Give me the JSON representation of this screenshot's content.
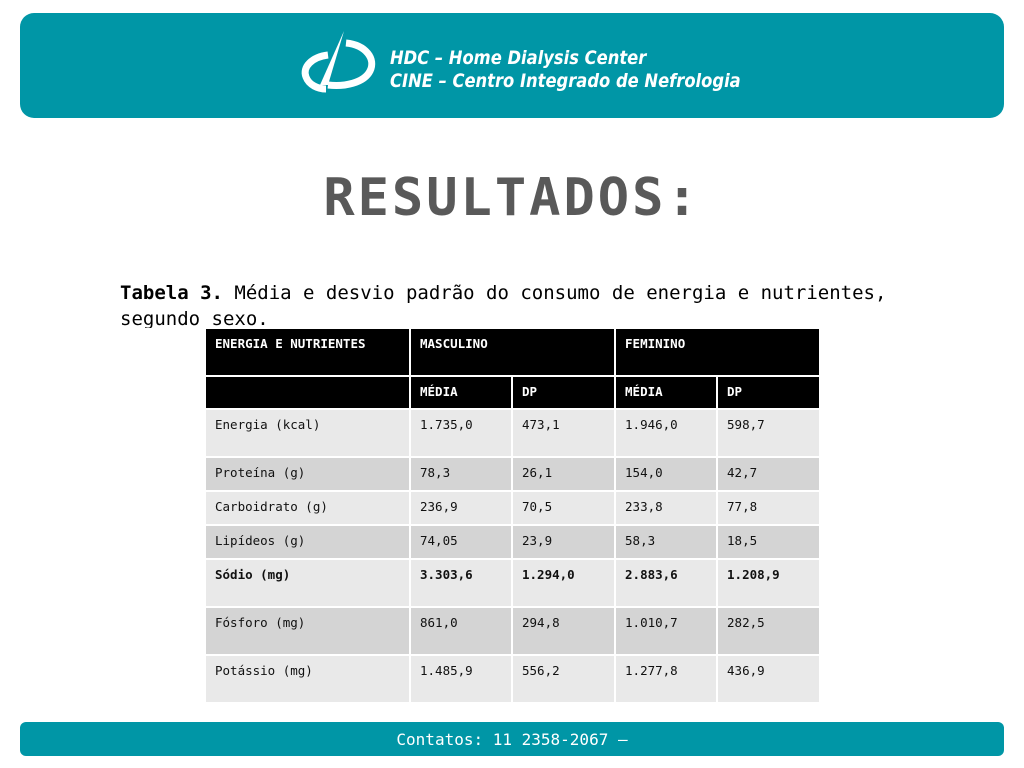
{
  "header": {
    "line1": "HDC – Home Dialysis Center",
    "line2": "CINE – Centro Integrado de Nefrologia",
    "colors": {
      "band": "#0096a6",
      "text": "#ffffff"
    }
  },
  "title": "RESULTADOS:",
  "caption": {
    "label": "Tabela 3.",
    "text": " Média e desvio padrão do consumo de energia e nutrientes, segundo sexo."
  },
  "table": {
    "header_row1": [
      "ENERGIA E NUTRIENTES",
      "MASCULINO",
      "FEMININO"
    ],
    "header_row2": [
      "",
      "MÉDIA",
      "DP",
      "MÉDIA",
      "DP"
    ],
    "rows": [
      [
        "Energia (kcal)",
        "1.735,0",
        "473,1",
        "1.946,0",
        "598,7"
      ],
      [
        "Proteína (g)",
        "78,3",
        "26,1",
        "154,0",
        "42,7"
      ],
      [
        "Carboidrato (g)",
        "236,9",
        "70,5",
        "233,8",
        "77,8"
      ],
      [
        "Lipídeos (g)",
        "74,05",
        "23,9",
        "58,3",
        "18,5"
      ],
      [
        "Sódio (mg)",
        "3.303,6",
        "1.294,0",
        "2.883,6",
        "1.208,9"
      ],
      [
        "Fósforo (mg)",
        "861,0",
        "294,8",
        "1.010,7",
        "282,5"
      ],
      [
        "Potássio (mg)",
        "1.485,9",
        "556,2",
        "1.277,8",
        "436,9"
      ]
    ]
  },
  "footer": {
    "text": "Contatos: 11 2358-2067 –"
  }
}
